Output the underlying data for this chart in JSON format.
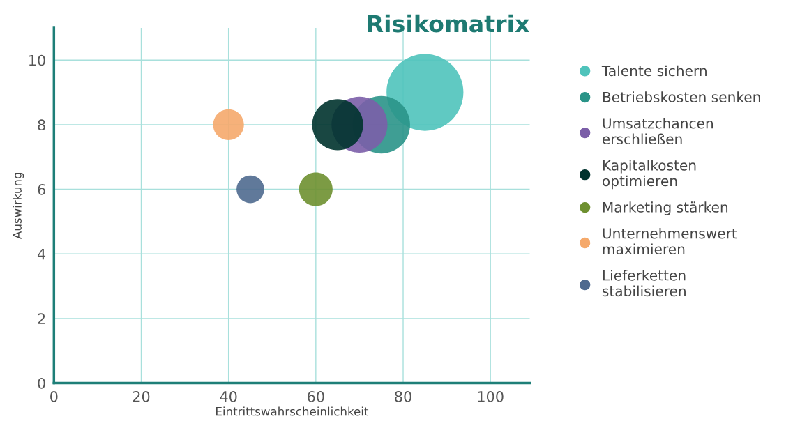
{
  "chart_data": {
    "type": "bubble",
    "title": "Risikomatrix",
    "xlabel": "Eintrittswahrscheinlichkeit",
    "ylabel": "Auswirkung",
    "xlim": [
      0,
      109
    ],
    "xticks": [
      0,
      20,
      40,
      60,
      80,
      100
    ],
    "ylim": [
      0,
      11
    ],
    "yticks": [
      0,
      2,
      4,
      6,
      8,
      10
    ],
    "grid": true,
    "legend": "right",
    "series": [
      {
        "name": "Talente sichern",
        "color": "#4fc3bb",
        "x": [
          85
        ],
        "values": [
          9
        ],
        "sizes": [
          1
        ]
      },
      {
        "name": "Betriebskosten senken",
        "color": "#2a9488",
        "x": [
          75
        ],
        "values": [
          8
        ],
        "sizes": [
          0.56
        ]
      },
      {
        "name": "Umsatzchancen erschließen",
        "color": "#7b5ea8",
        "x": [
          70
        ],
        "values": [
          8
        ],
        "sizes": [
          0.53
        ]
      },
      {
        "name": "Kapitalkosten optimieren",
        "color": "#00332e",
        "x": [
          65
        ],
        "values": [
          8
        ],
        "sizes": [
          0.44
        ]
      },
      {
        "name": "Marketing stärken",
        "color": "#6e9030",
        "x": [
          60
        ],
        "values": [
          6
        ],
        "sizes": [
          0.19
        ]
      },
      {
        "name": "Unternehmenswert maximieren",
        "color": "#f5a96b",
        "x": [
          40
        ],
        "values": [
          8
        ],
        "sizes": [
          0.16
        ]
      },
      {
        "name": "Lieferketten stabilisieren",
        "color": "#4f6a8f",
        "x": [
          45
        ],
        "values": [
          6
        ],
        "sizes": [
          0.13
        ]
      }
    ]
  }
}
